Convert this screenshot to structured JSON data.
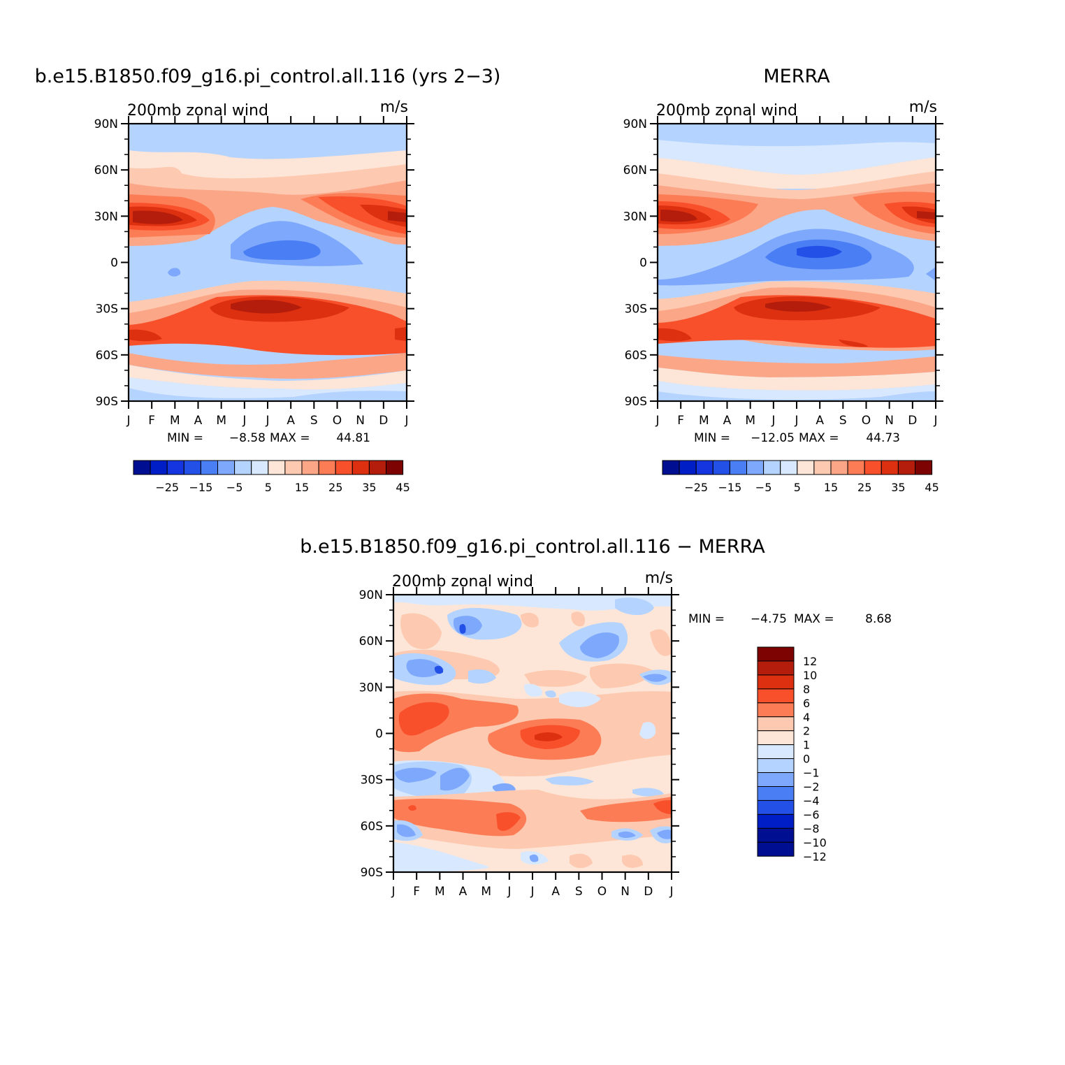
{
  "chart_data": [
    {
      "type": "heatmap",
      "title": "b.e15.B1850.f09_g16.pi_control.all.116 (yrs 2−3)",
      "left_string": "200mb zonal wind",
      "right_string": "m/s",
      "x_ticks": [
        "J",
        "F",
        "M",
        "A",
        "M",
        "J",
        "J",
        "A",
        "S",
        "O",
        "N",
        "D",
        "J"
      ],
      "y_ticks": [
        "90N",
        "60N",
        "30N",
        "0",
        "30S",
        "60S",
        "90S"
      ],
      "stats": {
        "min_label": "MIN =",
        "min": "−8.58",
        "max_label": "MAX =",
        "max": "44.81"
      },
      "colorbar": {
        "orientation": "horizontal",
        "levels": [
          -30,
          -25,
          -20,
          -15,
          -10,
          -5,
          0,
          5,
          10,
          15,
          20,
          25,
          30,
          35,
          40,
          45
        ],
        "labels": [
          "−25",
          "−15",
          "−5",
          "5",
          "15",
          "25",
          "35",
          "45"
        ]
      },
      "features": [
        {
          "lon": 1.5,
          "lat": 28,
          "value": 43
        },
        {
          "lon": 11.5,
          "lat": 29,
          "value": 42
        },
        {
          "lon": 6.5,
          "lat": -32,
          "value": 44
        },
        {
          "lon": 1,
          "lat": -47,
          "value": 38
        },
        {
          "lon": 11.5,
          "lat": -46,
          "value": 38
        },
        {
          "lon": 7.5,
          "lat": 8,
          "value": -8
        },
        {
          "lon": 2.5,
          "lat": -4,
          "value": -4
        },
        {
          "lon": 7.5,
          "lat": 78,
          "value": 2
        }
      ]
    },
    {
      "type": "heatmap",
      "title": "MERRA",
      "left_string": "200mb zonal wind",
      "right_string": "m/s",
      "x_ticks": [
        "J",
        "F",
        "M",
        "A",
        "M",
        "J",
        "J",
        "A",
        "S",
        "O",
        "N",
        "D",
        "J"
      ],
      "y_ticks": [
        "90N",
        "60N",
        "30N",
        "0",
        "30S",
        "60S",
        "90S"
      ],
      "stats": {
        "min_label": "MIN =",
        "min": "−12.05",
        "max_label": "MAX =",
        "max": "44.73"
      },
      "colorbar": {
        "orientation": "horizontal",
        "levels": [
          -30,
          -25,
          -20,
          -15,
          -10,
          -5,
          0,
          5,
          10,
          15,
          20,
          25,
          30,
          35,
          40,
          45
        ],
        "labels": [
          "−25",
          "−15",
          "−5",
          "5",
          "15",
          "25",
          "35",
          "45"
        ]
      },
      "features": [
        {
          "lon": 1.3,
          "lat": 30,
          "value": 42
        },
        {
          "lon": 11.6,
          "lat": 32,
          "value": 41
        },
        {
          "lon": 6.5,
          "lat": -29,
          "value": 42
        },
        {
          "lon": 7,
          "lat": 7,
          "value": -12
        },
        {
          "lon": 1,
          "lat": -47,
          "value": 35
        }
      ]
    },
    {
      "type": "heatmap",
      "title": "b.e15.B1850.f09_g16.pi_control.all.116 − MERRA",
      "left_string": "200mb zonal wind",
      "right_string": "m/s",
      "x_ticks": [
        "J",
        "F",
        "M",
        "A",
        "M",
        "J",
        "J",
        "A",
        "S",
        "O",
        "N",
        "D",
        "J"
      ],
      "y_ticks": [
        "90N",
        "60N",
        "30N",
        "0",
        "30S",
        "60S",
        "90S"
      ],
      "stats": {
        "min_label": "MIN =",
        "min": "−4.75",
        "max_label": "MAX =",
        "max": "8.68"
      },
      "colorbar": {
        "orientation": "vertical",
        "levels": [
          -12,
          -10,
          -8,
          -6,
          -4,
          -2,
          -1,
          0,
          1,
          2,
          4,
          6,
          8,
          10,
          12
        ],
        "labels": [
          "12",
          "10",
          "8",
          "6",
          "4",
          "2",
          "1",
          "0",
          "−1",
          "−2",
          "−4",
          "−6",
          "−8",
          "−10",
          "−12"
        ]
      },
      "features": [
        {
          "lon": 7,
          "lat": -3,
          "value": 8.7
        },
        {
          "lon": 1.8,
          "lat": 9,
          "value": 5
        },
        {
          "lon": 3.4,
          "lat": 68,
          "value": -4.7
        },
        {
          "lon": 2,
          "lat": 40,
          "value": -4
        },
        {
          "lon": 9.5,
          "lat": 57,
          "value": -3
        },
        {
          "lon": 1.5,
          "lat": -48,
          "value": 4
        }
      ]
    }
  ]
}
